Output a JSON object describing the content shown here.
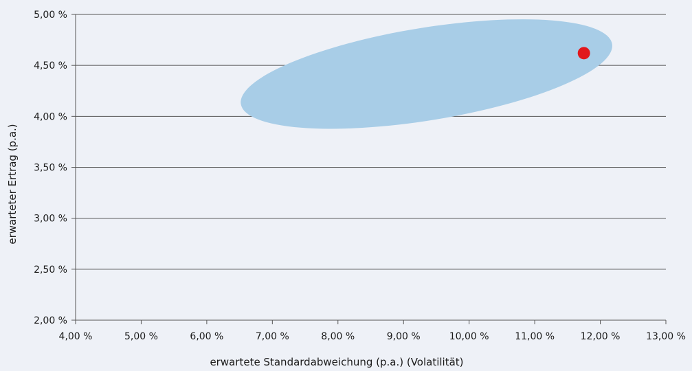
{
  "chart_data": {
    "type": "scatter",
    "xlabel": "erwartete Standardabweichung (p.a.) (Volatilität)",
    "ylabel": "erwarteter Ertrag (p.a.)",
    "xlim": [
      4,
      13
    ],
    "ylim": [
      2,
      5
    ],
    "x_ticks": [
      4,
      5,
      6,
      7,
      8,
      9,
      10,
      11,
      12,
      13
    ],
    "y_ticks": [
      2,
      2.5,
      3,
      3.5,
      4,
      4.5,
      5
    ],
    "x_tick_labels": [
      "4,00 %",
      "5,00 %",
      "6,00 %",
      "7,00 %",
      "8,00 %",
      "9,00 %",
      "10,00 %",
      "11,00 %",
      "12,00 %",
      "13,00 %"
    ],
    "y_tick_labels": [
      "2,00 %",
      "2,50 %",
      "3,00 %",
      "3,50 %",
      "4,00 %",
      "4,50 %",
      "5,00 %"
    ],
    "grid": "horizontal",
    "region": {
      "shape": "ellipse",
      "color": "#a8cde7",
      "center": [
        9.75,
        4.42
      ],
      "left_tip": [
        6.52,
        4.12
      ],
      "right_tip": [
        12.18,
        4.71
      ],
      "top": [
        11.1,
        4.9
      ],
      "bottom": [
        7.6,
        3.96
      ]
    },
    "points": [
      {
        "x": 11.75,
        "y": 4.62,
        "color": "#e2171c"
      }
    ]
  },
  "colors": {
    "background": "#eef1f7",
    "gridline": "#555555",
    "axis": "#555555"
  }
}
